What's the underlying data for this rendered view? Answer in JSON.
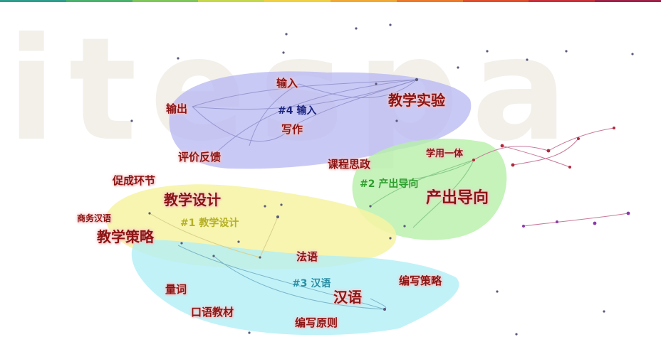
{
  "timeline_colors": [
    "#2e9e8e",
    "#49b36e",
    "#7ec85a",
    "#c5d84a",
    "#f0d040",
    "#f2a933",
    "#ec7a2a",
    "#e04e2c",
    "#c9303a",
    "#a12248"
  ],
  "clusters": [
    {
      "id": "#4",
      "label": "#4 输入",
      "color": "#1a237e"
    },
    {
      "id": "#2",
      "label": "#2 产出导向",
      "color": "#2e9e2e"
    },
    {
      "id": "#1",
      "label": "#1 教学设计",
      "color": "#b5b025"
    },
    {
      "id": "#3",
      "label": "#3 汉语",
      "color": "#2a8fa5"
    }
  ],
  "keywords": [
    "输入",
    "教学实验",
    "输出",
    "写作",
    "评价反馈",
    "课程思政",
    "学用一体",
    "促成环节",
    "产出导向",
    "教学设计",
    "商务汉语",
    "教学策略",
    "法语",
    "编写策略",
    "量词",
    "汉语",
    "口语教材",
    "编写原则"
  ]
}
